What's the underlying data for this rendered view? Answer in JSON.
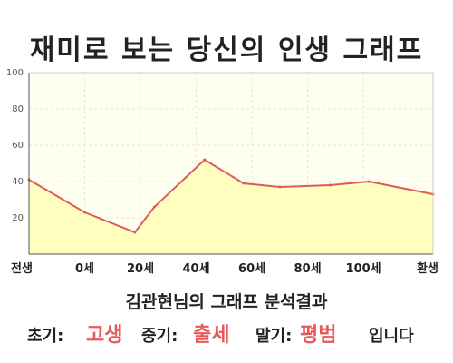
{
  "chart_data": {
    "type": "area",
    "title": "재미로 보는 당신의 인생 그래프",
    "subtitle": "김관현님의 그래프 분석결과",
    "x_tick_labels": [
      "전생",
      "0세",
      "20세",
      "40세",
      "60세",
      "80세",
      "100세",
      "환생"
    ],
    "x": [
      -30,
      -10,
      8,
      15,
      33,
      47,
      60,
      78,
      92,
      115
    ],
    "values": [
      41,
      23,
      12,
      26,
      52,
      39,
      37,
      38,
      40,
      33
    ],
    "ylim": [
      0,
      100
    ],
    "y_ticks": [
      20,
      40,
      60,
      80,
      100
    ],
    "grid": true,
    "colors": {
      "line": "#e05a5a",
      "fill": "#ffffc0",
      "plot_bg": "#fffff0",
      "accent": "#e85a5a"
    }
  },
  "summary": {
    "early_label": "초기:",
    "early_value": "고생",
    "middle_label": "중기:",
    "middle_value": "출세",
    "late_label": "말기:",
    "late_value": "평범",
    "ending": "입니다"
  }
}
